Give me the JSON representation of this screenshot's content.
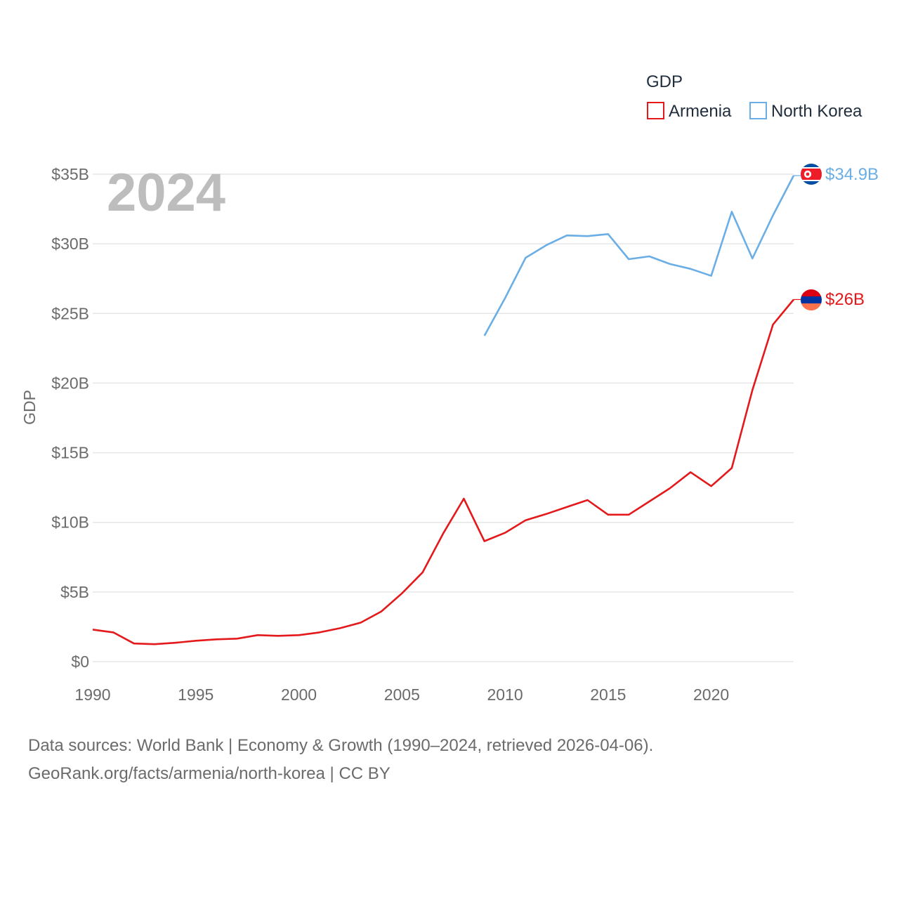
{
  "chart_data": {
    "type": "line",
    "title": "",
    "year_label": "2024",
    "legend_title": "GDP",
    "ylabel": "GDP",
    "xlabel": "",
    "xlim": [
      1990,
      2024
    ],
    "ylim": [
      0,
      35
    ],
    "x_ticks": [
      1990,
      1995,
      2000,
      2005,
      2010,
      2015,
      2020
    ],
    "y_ticks": [
      {
        "value": 0,
        "label": "$0"
      },
      {
        "value": 5,
        "label": "$5B"
      },
      {
        "value": 10,
        "label": "$10B"
      },
      {
        "value": 15,
        "label": "$15B"
      },
      {
        "value": 20,
        "label": "$20B"
      },
      {
        "value": 25,
        "label": "$25B"
      },
      {
        "value": 30,
        "label": "$30B"
      },
      {
        "value": 35,
        "label": "$35B"
      }
    ],
    "legend_position": "top-right",
    "series": [
      {
        "name": "Armenia",
        "color": "#e3191c",
        "end_label": "$26B",
        "flag": "armenia-flag",
        "x": [
          1990,
          1991,
          1992,
          1993,
          1994,
          1995,
          1996,
          1997,
          1998,
          1999,
          2000,
          2001,
          2002,
          2003,
          2004,
          2005,
          2006,
          2007,
          2008,
          2009,
          2010,
          2011,
          2012,
          2013,
          2014,
          2015,
          2016,
          2017,
          2018,
          2019,
          2020,
          2021,
          2022,
          2023,
          2024
        ],
        "values": [
          2.3,
          2.1,
          1.3,
          1.25,
          1.35,
          1.5,
          1.6,
          1.65,
          1.9,
          1.85,
          1.9,
          2.1,
          2.4,
          2.8,
          3.6,
          4.9,
          6.4,
          9.2,
          11.7,
          8.65,
          9.25,
          10.15,
          10.6,
          11.1,
          11.6,
          10.55,
          10.55,
          11.5,
          12.45,
          13.6,
          12.6,
          13.9,
          19.5,
          24.2,
          26.0
        ]
      },
      {
        "name": "North Korea",
        "color": "#6aaee5",
        "end_label": "$34.9B",
        "flag": "north-korea-flag",
        "x": [
          2009,
          2010,
          2011,
          2012,
          2013,
          2014,
          2015,
          2016,
          2017,
          2018,
          2019,
          2020,
          2021,
          2022,
          2023,
          2024
        ],
        "values": [
          23.4,
          26.1,
          29.0,
          29.9,
          30.6,
          30.55,
          30.7,
          28.9,
          29.1,
          28.55,
          28.2,
          27.7,
          32.3,
          28.95,
          32.05,
          34.9
        ]
      }
    ]
  },
  "source": {
    "line1": "Data sources: World Bank | Economy & Growth (1990–2024, retrieved 2026-04-06).",
    "line2": "GeoRank.org/facts/armenia/north-korea | CC BY"
  }
}
